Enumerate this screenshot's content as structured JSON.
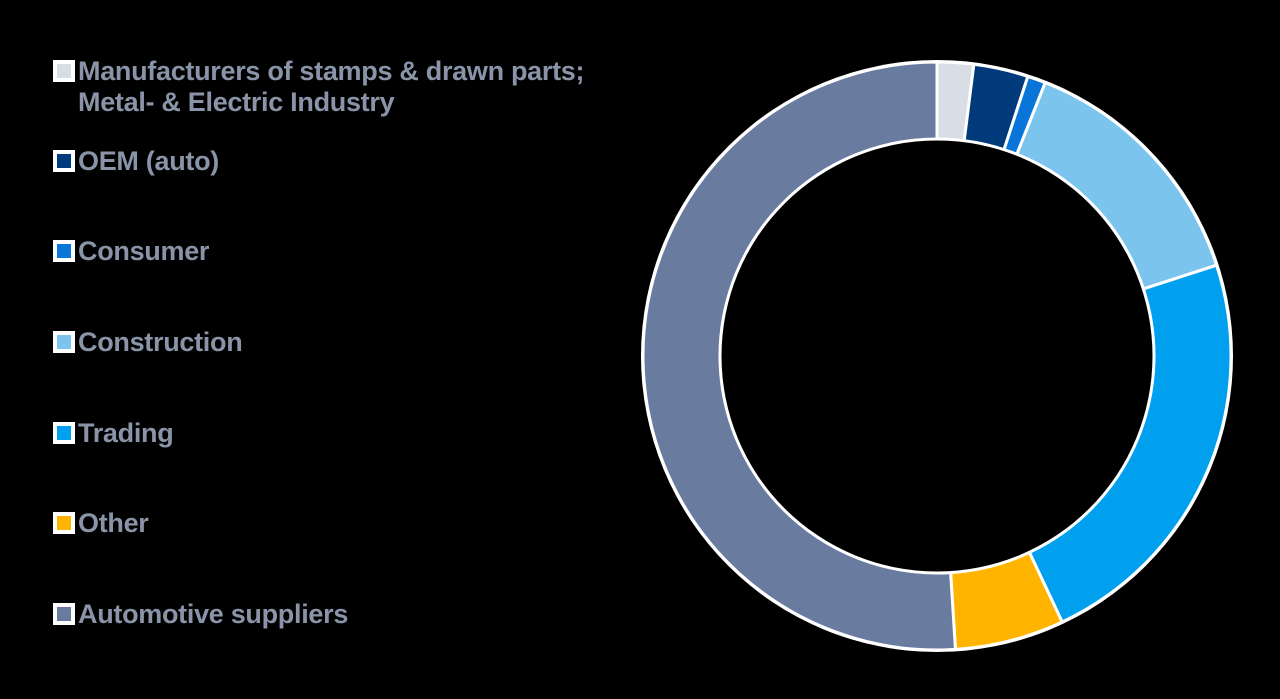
{
  "chart_data": {
    "type": "pie",
    "subtype": "donut",
    "title": "",
    "legend_position": "left",
    "categories": [
      "Manufacturers of stamps & drawn parts; Metal- & Electric Industry",
      "OEM (auto)",
      "Consumer",
      "Construction",
      "Trading",
      "Other",
      "Automotive suppliers"
    ],
    "values": [
      2,
      3,
      1,
      14,
      23,
      6,
      51
    ],
    "unit": "%",
    "colors": [
      "#d9dde6",
      "#003a7a",
      "#0a75d9",
      "#7bc4ee",
      "#00a0ef",
      "#ffb400",
      "#6a7ba0"
    ]
  },
  "legend": {
    "items": [
      {
        "label": "Manufacturers of stamps & drawn parts;\nMetal- & Electric Industry",
        "color": "#d9dde6"
      },
      {
        "label": "OEM (auto)",
        "color": "#003a7a"
      },
      {
        "label": "Consumer",
        "color": "#0a75d9"
      },
      {
        "label": "Construction",
        "color": "#7bc4ee"
      },
      {
        "label": "Trading",
        "color": "#00a0ef"
      },
      {
        "label": "Other",
        "color": "#ffb400"
      },
      {
        "label": "Automotive suppliers",
        "color": "#6a7ba0"
      }
    ]
  }
}
